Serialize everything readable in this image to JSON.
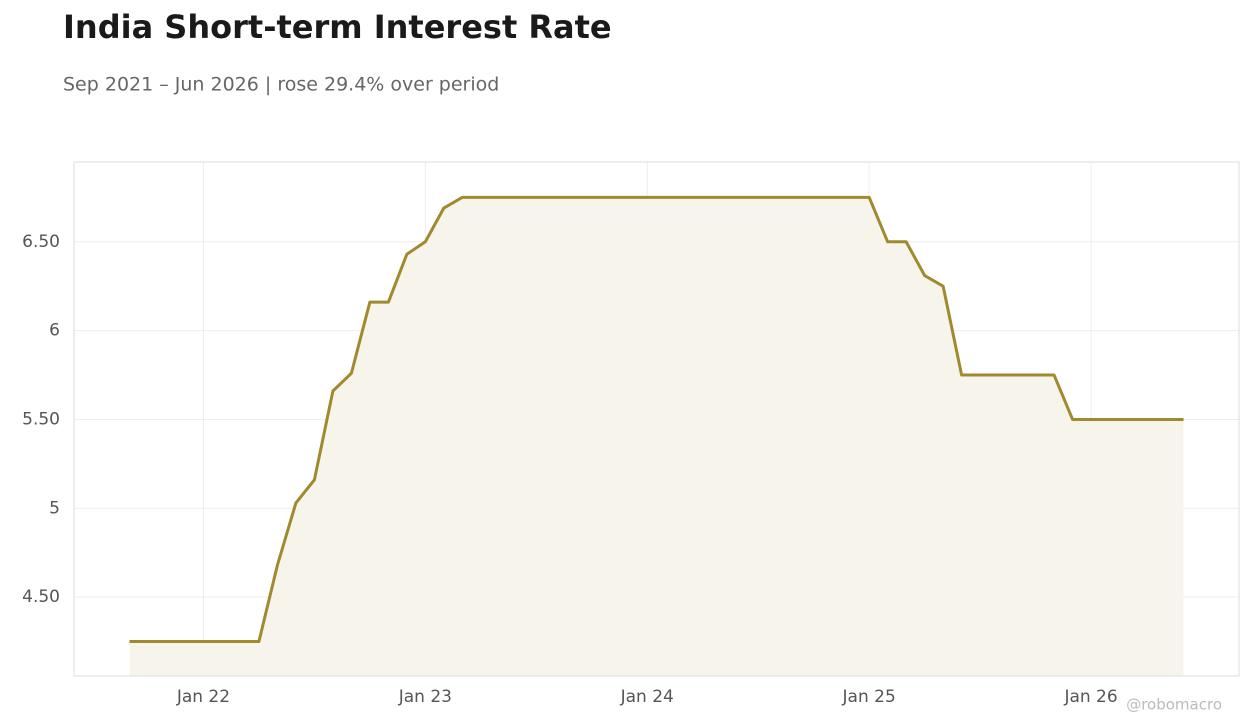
{
  "chart_data": {
    "type": "line",
    "title": "India Short-term Interest Rate",
    "subtitle": "Sep 2021 – Jun 2026 | rose 29.4% over period",
    "watermark": "@robomacro",
    "color": "#a08a2e",
    "fill": "#f7f4ec",
    "grid": true,
    "x": [
      "2021-09",
      "2021-10",
      "2021-11",
      "2021-12",
      "2022-01",
      "2022-02",
      "2022-03",
      "2022-04",
      "2022-05",
      "2022-06",
      "2022-07",
      "2022-08",
      "2022-09",
      "2022-10",
      "2022-11",
      "2022-12",
      "2023-01",
      "2023-02",
      "2023-03",
      "2023-04",
      "2023-05",
      "2023-06",
      "2023-07",
      "2023-08",
      "2023-09",
      "2023-10",
      "2023-11",
      "2023-12",
      "2024-01",
      "2024-02",
      "2024-03",
      "2024-04",
      "2024-05",
      "2024-06",
      "2024-07",
      "2024-08",
      "2024-09",
      "2024-10",
      "2024-11",
      "2024-12",
      "2025-01",
      "2025-02",
      "2025-03",
      "2025-04",
      "2025-05",
      "2025-06",
      "2025-07",
      "2025-08",
      "2025-09",
      "2025-10",
      "2025-11",
      "2025-12",
      "2026-01",
      "2026-02",
      "2026-03",
      "2026-04",
      "2026-05",
      "2026-06"
    ],
    "values": [
      4.25,
      4.25,
      4.25,
      4.25,
      4.25,
      4.25,
      4.25,
      4.25,
      4.68,
      5.03,
      5.16,
      5.66,
      5.76,
      6.16,
      6.16,
      6.43,
      6.5,
      6.69,
      6.75,
      6.75,
      6.75,
      6.75,
      6.75,
      6.75,
      6.75,
      6.75,
      6.75,
      6.75,
      6.75,
      6.75,
      6.75,
      6.75,
      6.75,
      6.75,
      6.75,
      6.75,
      6.75,
      6.75,
      6.75,
      6.75,
      6.75,
      6.5,
      6.5,
      6.31,
      6.25,
      5.75,
      5.75,
      5.75,
      5.75,
      5.75,
      5.75,
      5.5,
      5.5,
      5.5,
      5.5,
      5.5,
      5.5,
      5.5
    ],
    "xlim": [
      "2021-06",
      "2026-09"
    ],
    "xticks": [
      {
        "value": "2022-01",
        "label": "Jan 22"
      },
      {
        "value": "2023-01",
        "label": "Jan 23"
      },
      {
        "value": "2024-01",
        "label": "Jan 24"
      },
      {
        "value": "2025-01",
        "label": "Jan 25"
      },
      {
        "value": "2026-01",
        "label": "Jan 26"
      }
    ],
    "ylim": [
      4.056,
      6.949
    ],
    "yticks": [
      {
        "value": 4.5,
        "label": "4.50"
      },
      5,
      {
        "value": 5.5,
        "label": "5.50"
      },
      6,
      {
        "value": 6.5,
        "label": "6.50"
      }
    ]
  }
}
